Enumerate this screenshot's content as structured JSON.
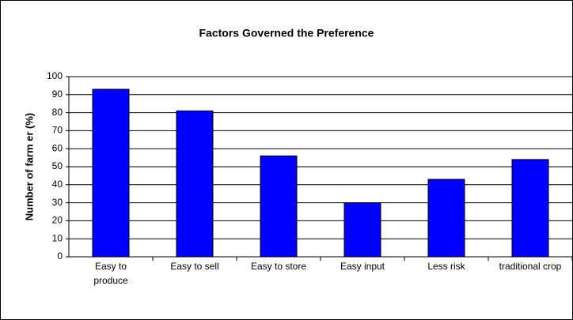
{
  "chart_data": {
    "type": "bar",
    "title": "Factors Governed the Preference",
    "y_label": "Number of farm er (%)",
    "categories": [
      "Easy to produce",
      "Easy to sell",
      "Easy to store",
      "Easy input",
      "Less risk",
      "traditional crop"
    ],
    "values": [
      93,
      81,
      56,
      30,
      43,
      54
    ],
    "color": "#0000ff",
    "ylim": [
      0,
      100
    ],
    "yticks": [
      0,
      10,
      20,
      30,
      40,
      50,
      60,
      70,
      80,
      90,
      100
    ],
    "grid": true
  }
}
